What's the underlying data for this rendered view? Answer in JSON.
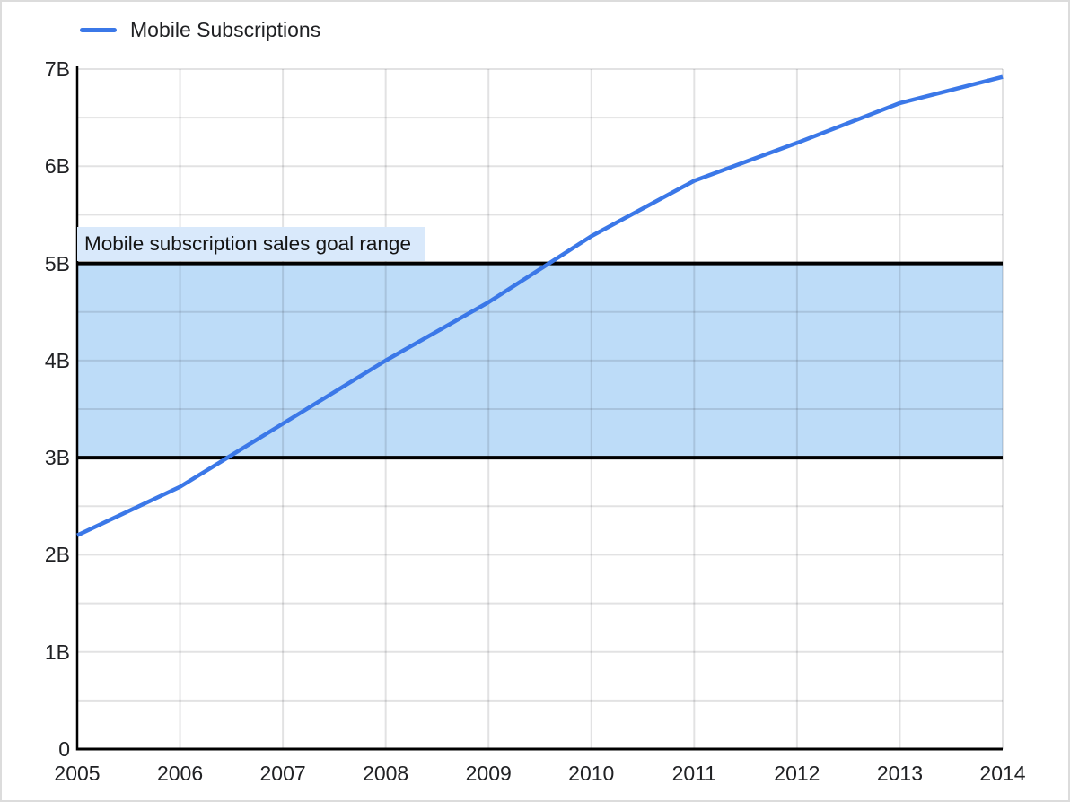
{
  "page": {
    "background": "#ffffff",
    "border_color": "#dcdcdc",
    "text_color": "#202124"
  },
  "legend": {
    "position": "top-left",
    "items": [
      {
        "label": "Mobile Subscriptions",
        "swatch": "line-swatch",
        "color": "#3b78e8"
      }
    ]
  },
  "chart_data": {
    "type": "line",
    "title": "",
    "xlabel": "",
    "ylabel": "",
    "x": [
      2005,
      2006,
      2007,
      2008,
      2009,
      2010,
      2011,
      2012,
      2013,
      2014
    ],
    "x_tick_labels": [
      "2005",
      "2006",
      "2007",
      "2008",
      "2009",
      "2010",
      "2011",
      "2012",
      "2013",
      "2014"
    ],
    "series": [
      {
        "name": "Mobile Subscriptions",
        "color": "#3b78e8",
        "values": [
          2.2,
          2.7,
          3.35,
          4.0,
          4.6,
          5.28,
          5.85,
          6.24,
          6.65,
          6.92
        ]
      }
    ],
    "unit": "billions",
    "ylim": [
      0,
      7
    ],
    "y_tick_step": 1,
    "y_tick_labels": [
      "0",
      "1B",
      "2B",
      "3B",
      "4B",
      "5B",
      "6B",
      "7B"
    ],
    "minor_y_grid_step": 0.5,
    "grid": true,
    "legend_position": "top-left",
    "annotation_band": {
      "from": 3,
      "to": 5,
      "label": "Mobile subscription sales goal range",
      "band_fill": "#bddcf8",
      "label_bg": "#d9e9fb",
      "edge_line_color": "#000000"
    },
    "colors": {
      "gridline": "rgba(33,33,36,0.13)",
      "axis": "#000000"
    }
  }
}
